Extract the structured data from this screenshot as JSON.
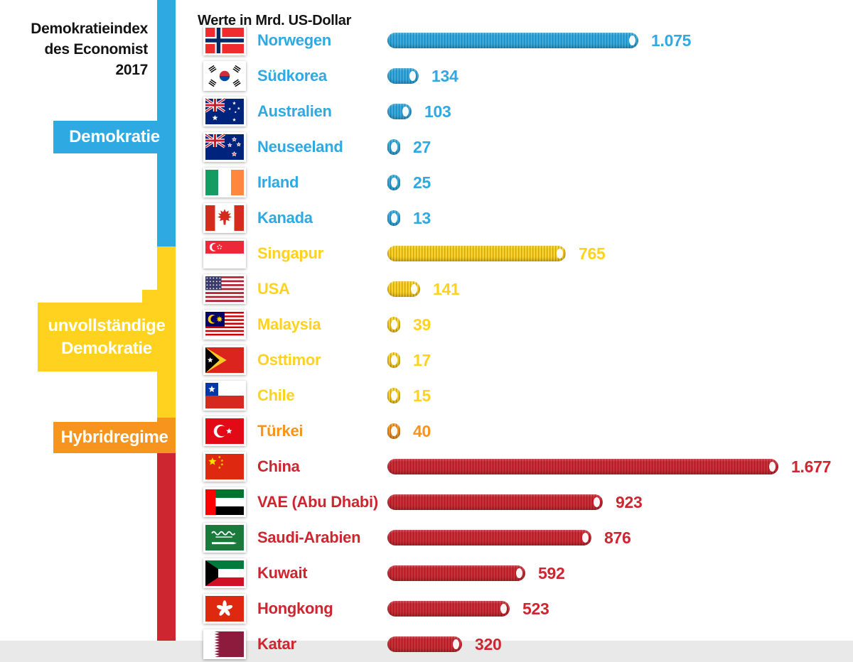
{
  "header": {
    "index_title_lines": [
      "Demokratieindex",
      "des Economist",
      "2017"
    ],
    "units_label": "Werte in Mrd. US-Dollar"
  },
  "legend": {
    "groups": [
      {
        "id": "demokratie",
        "label": "Demokratie",
        "color": "#2fa9e1"
      },
      {
        "id": "unvollstaendige",
        "label": "unvollständige Demokratie",
        "color": "#ffd21f"
      },
      {
        "id": "hybrid",
        "label": "Hybridregime",
        "color": "#f7941e"
      },
      {
        "id": "autoritaer",
        "label": "",
        "color": "#cd2630"
      }
    ]
  },
  "chart_data": {
    "type": "bar",
    "orientation": "horizontal",
    "title": "Demokratieindex des Economist 2017",
    "unit": "Mrd. US-Dollar",
    "xlim": [
      0,
      1700
    ],
    "rows": [
      {
        "country": "Norwegen",
        "flag": "no",
        "flag_icon": "norway-flag-icon",
        "value": 1075,
        "display": "1.075",
        "group": "demokratie"
      },
      {
        "country": "Südkorea",
        "flag": "kr",
        "flag_icon": "south-korea-flag-icon",
        "value": 134,
        "display": "134",
        "group": "demokratie"
      },
      {
        "country": "Australien",
        "flag": "au",
        "flag_icon": "australia-flag-icon",
        "value": 103,
        "display": "103",
        "group": "demokratie"
      },
      {
        "country": "Neuseeland",
        "flag": "nz",
        "flag_icon": "new-zealand-flag-icon",
        "value": 27,
        "display": "27",
        "group": "demokratie"
      },
      {
        "country": "Irland",
        "flag": "ie",
        "flag_icon": "ireland-flag-icon",
        "value": 25,
        "display": "25",
        "group": "demokratie"
      },
      {
        "country": "Kanada",
        "flag": "ca",
        "flag_icon": "canada-flag-icon",
        "value": 13,
        "display": "13",
        "group": "demokratie"
      },
      {
        "country": "Singapur",
        "flag": "sg",
        "flag_icon": "singapore-flag-icon",
        "value": 765,
        "display": "765",
        "group": "unvollstaendige"
      },
      {
        "country": "USA",
        "flag": "us",
        "flag_icon": "usa-flag-icon",
        "value": 141,
        "display": "141",
        "group": "unvollstaendige"
      },
      {
        "country": "Malaysia",
        "flag": "my",
        "flag_icon": "malaysia-flag-icon",
        "value": 39,
        "display": "39",
        "group": "unvollstaendige"
      },
      {
        "country": "Osttimor",
        "flag": "tl",
        "flag_icon": "east-timor-flag-icon",
        "value": 17,
        "display": "17",
        "group": "unvollstaendige"
      },
      {
        "country": "Chile",
        "flag": "cl",
        "flag_icon": "chile-flag-icon",
        "value": 15,
        "display": "15",
        "group": "unvollstaendige"
      },
      {
        "country": "Türkei",
        "flag": "tr",
        "flag_icon": "turkey-flag-icon",
        "value": 40,
        "display": "40",
        "group": "hybrid"
      },
      {
        "country": "China",
        "flag": "cn",
        "flag_icon": "china-flag-icon",
        "value": 1677,
        "display": "1.677",
        "group": "autoritaer"
      },
      {
        "country": "VAE (Abu Dhabi)",
        "flag": "ae",
        "flag_icon": "uae-flag-icon",
        "value": 923,
        "display": "923",
        "group": "autoritaer"
      },
      {
        "country": "Saudi-Arabien",
        "flag": "sa",
        "flag_icon": "saudi-arabia-flag-icon",
        "value": 876,
        "display": "876",
        "group": "autoritaer"
      },
      {
        "country": "Kuwait",
        "flag": "kw",
        "flag_icon": "kuwait-flag-icon",
        "value": 592,
        "display": "592",
        "group": "autoritaer"
      },
      {
        "country": "Hongkong",
        "flag": "hk",
        "flag_icon": "hong-kong-flag-icon",
        "value": 523,
        "display": "523",
        "group": "autoritaer"
      },
      {
        "country": "Katar",
        "flag": "qa",
        "flag_icon": "qatar-flag-icon",
        "value": 320,
        "display": "320",
        "group": "autoritaer",
        "clipped": true
      }
    ]
  }
}
